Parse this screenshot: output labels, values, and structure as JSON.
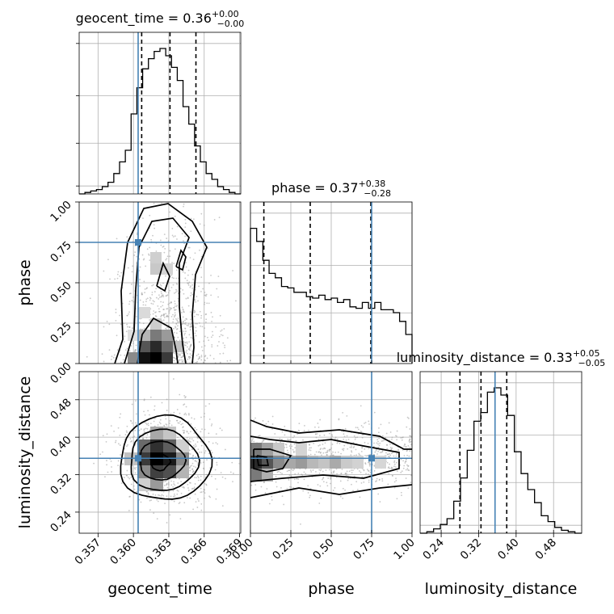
{
  "chart_data": {
    "type": "corner",
    "parameters": [
      "geocent_time",
      "phase",
      "luminosity_distance"
    ],
    "ranges": {
      "geocent_time": [
        0.3554,
        0.3691
      ],
      "phase": [
        0.0,
        1.0
      ],
      "luminosity_distance": [
        0.195,
        0.54
      ]
    },
    "ticks": {
      "geocent_time": [
        "0.357",
        "0.360",
        "0.363",
        "0.366",
        "0.369"
      ],
      "phase": [
        "0.00",
        "0.25",
        "0.50",
        "0.75",
        "1.00"
      ],
      "luminosity_distance": [
        "0.24",
        "0.32",
        "0.40",
        "0.48"
      ]
    },
    "tick_values": {
      "geocent_time": [
        0.357,
        0.36,
        0.363,
        0.366,
        0.369
      ],
      "phase": [
        0.0,
        0.25,
        0.5,
        0.75,
        1.0
      ],
      "luminosity_distance": [
        0.24,
        0.32,
        0.4,
        0.48
      ]
    },
    "axis_labels": {
      "geocent_time": "geocent_time",
      "phase": "phase",
      "luminosity_distance": "luminosity_distance"
    },
    "titles": [
      {
        "parameter": "geocent_time",
        "text": "geocent_time = 0.36",
        "upper": "+0.00",
        "lower": "−0.00"
      },
      {
        "parameter": "phase",
        "text": "phase = 0.37",
        "upper": "+0.38",
        "lower": "−0.28"
      },
      {
        "parameter": "luminosity_distance",
        "text": "luminosity_distance = 0.33",
        "upper": "+0.05",
        "lower": "−0.05"
      }
    ],
    "truths": {
      "geocent_time": 0.3604,
      "phase": 0.75,
      "luminosity_distance": 0.355
    },
    "quantiles": {
      "geocent_time": [
        0.3607,
        0.3631,
        0.3653
      ],
      "phase": [
        0.083,
        0.37,
        0.745
      ],
      "luminosity_distance": [
        0.28,
        0.325,
        0.38
      ]
    },
    "histograms": {
      "geocent_time": {
        "edges_start": 0.3554,
        "edges_end": 0.3691,
        "counts": [
          0.0,
          0.01,
          0.02,
          0.03,
          0.05,
          0.08,
          0.14,
          0.22,
          0.3,
          0.55,
          0.73,
          0.86,
          0.93,
          0.98,
          1.0,
          0.95,
          0.87,
          0.78,
          0.6,
          0.48,
          0.33,
          0.22,
          0.14,
          0.1,
          0.05,
          0.03,
          0.01,
          0.0
        ]
      },
      "phase": {
        "edges_start": 0.0,
        "edges_end": 1.0,
        "counts": [
          0.93,
          0.84,
          0.71,
          0.62,
          0.59,
          0.53,
          0.52,
          0.49,
          0.49,
          0.46,
          0.45,
          0.47,
          0.44,
          0.45,
          0.42,
          0.44,
          0.39,
          0.38,
          0.42,
          0.38,
          0.42,
          0.37,
          0.37,
          0.35,
          0.29,
          0.2
        ]
      },
      "luminosity_distance": {
        "edges_start": 0.195,
        "edges_end": 0.54,
        "counts": [
          0.0,
          0.01,
          0.03,
          0.06,
          0.1,
          0.22,
          0.38,
          0.57,
          0.77,
          0.83,
          0.97,
          1.0,
          0.95,
          0.81,
          0.56,
          0.41,
          0.3,
          0.21,
          0.12,
          0.08,
          0.04,
          0.02,
          0.01,
          0.0
        ]
      }
    },
    "pairs": [
      {
        "x": "geocent_time",
        "y": "phase"
      },
      {
        "x": "geocent_time",
        "y": "luminosity_distance"
      },
      {
        "x": "phase",
        "y": "luminosity_distance"
      }
    ],
    "grid": true
  }
}
